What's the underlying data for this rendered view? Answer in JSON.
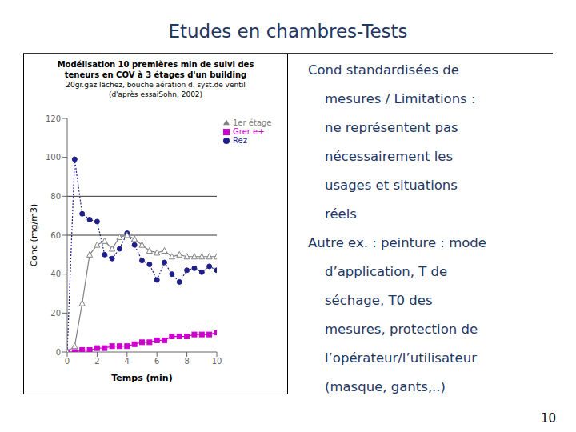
{
  "title": "Etudes en chambres-Tests",
  "page_number": "10",
  "text_lines": [
    "Cond standardisées de",
    "    mesures / Limitations :",
    "    ne représentent pas",
    "    nécessairement les",
    "    usages et situations",
    "    réels",
    "Autre ex. : peinture : mode",
    "    d’application, T de",
    "    séchage, T0 des",
    "    mesures, protection de",
    "    l’opérateur/l’utilisateur",
    "    (masque, gants,..)"
  ],
  "chart_data": {
    "type": "line",
    "title": [
      "Modélisation 10 premières min de suivi des",
      "teneurs en COV à 3 étages d'un building"
    ],
    "subtitle": [
      "20gr.gaz lâchez, bouche aération d. syst.de ventil",
      "(d'après essaiSohn, 2002)"
    ],
    "x_label": "Temps (min)",
    "y_label": "Conc (mg/m3)",
    "x": [
      0.0,
      0.5,
      1.0,
      1.5,
      2.0,
      2.5,
      3.0,
      3.5,
      4.0,
      4.5,
      5.0,
      5.5,
      6.0,
      6.5,
      7.0,
      7.5,
      8.0,
      8.5,
      9.0,
      9.5,
      10.0
    ],
    "series": [
      {
        "name": "Rez",
        "color": "#1F1F8C",
        "marker": "circle",
        "line_style": "dotted",
        "values": [
          0,
          99,
          71,
          68,
          67,
          50,
          48,
          53,
          61,
          55,
          47,
          45,
          37,
          46,
          40,
          36,
          42,
          43,
          41,
          44,
          42
        ]
      },
      {
        "name": "Grer e+",
        "color": "#CC00CC",
        "marker": "square",
        "line_style": "solid",
        "values": [
          0,
          0,
          1,
          1,
          2,
          2,
          3,
          3,
          3,
          4,
          5,
          5,
          6,
          6,
          8,
          8,
          8,
          9,
          9,
          9,
          10
        ]
      },
      {
        "name": "1er étage",
        "color": "#808080",
        "marker": "triangle_open",
        "line_style": "solid",
        "values": [
          0,
          3,
          25,
          50,
          55,
          57,
          53,
          59,
          60,
          58,
          55,
          52,
          51,
          52,
          49,
          50,
          49,
          49,
          49,
          49,
          49
        ]
      }
    ],
    "hlines": [
      60,
      80
    ],
    "xlim": [
      0,
      10
    ],
    "xticks": [
      0,
      2,
      4,
      6,
      8,
      10
    ],
    "ylim": [
      0,
      120
    ],
    "yticks": [
      0,
      20,
      40,
      60,
      80,
      100,
      120
    ],
    "grid": false,
    "legend": "right"
  }
}
